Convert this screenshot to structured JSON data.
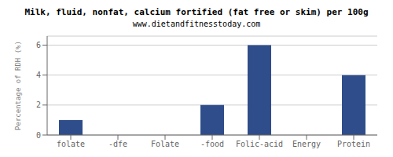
{
  "chart_data": {
    "type": "bar",
    "title": "Milk, fluid, nonfat, calcium fortified (fat free or skim) per 100g",
    "subtitle": "www.dietandfitnesstoday.com",
    "categories": [
      "folate",
      "-dfe",
      "Folate",
      "-food",
      "Folic-acid",
      "Energy",
      "Protein"
    ],
    "values": [
      1.0,
      0.0,
      0.0,
      2.0,
      6.0,
      0.0,
      4.0
    ],
    "color": "#2e4d8a",
    "ylabel": "Percentage of RDH (%)",
    "ylim": [
      0,
      6.6
    ],
    "yticks": [
      0,
      2,
      4,
      6
    ],
    "grid": true
  }
}
